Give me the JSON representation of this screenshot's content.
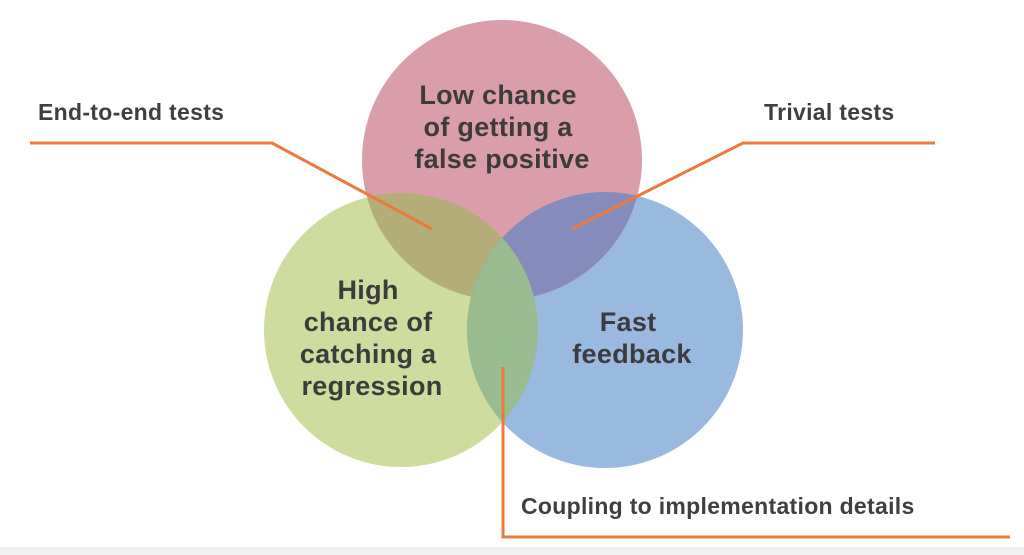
{
  "colors": {
    "top_circle": "#d99ea9",
    "left_circle": "#cfdc9f",
    "right_circle": "#99b9df",
    "overlap_top_left": "#b3ad79",
    "overlap_top_right": "#858cbb",
    "overlap_left_right": "#98bb8f",
    "leader_line": "#ea7a3e",
    "text": "#3c3c3c"
  },
  "circles": {
    "top": {
      "lines": [
        "Low chance",
        "of getting a",
        "false positive"
      ]
    },
    "left": {
      "lines": [
        "High",
        "chance of",
        "catching a",
        "regression"
      ]
    },
    "right": {
      "lines": [
        "Fast",
        "feedback"
      ]
    }
  },
  "callouts": {
    "end_to_end": "End-to-end tests",
    "trivial": "Trivial tests",
    "coupling": "Coupling to implementation details"
  }
}
